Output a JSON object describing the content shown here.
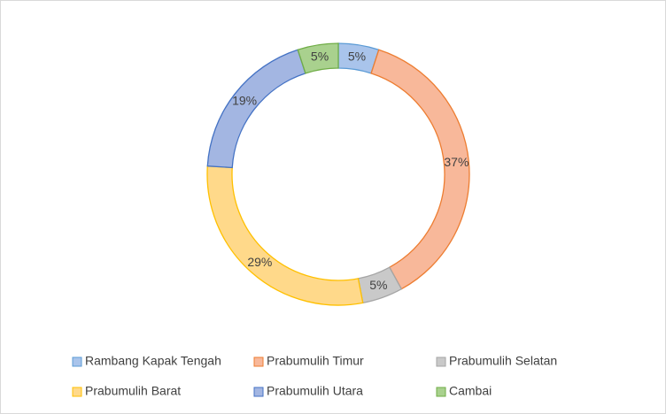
{
  "chart_data": {
    "type": "donut",
    "categories": [
      "Rambang Kapak Tengah",
      "Prabumulih Timur",
      "Prabumulih Selatan",
      "Prabumulih Barat",
      "Prabumulih Utara",
      "Cambai"
    ],
    "values": [
      5,
      37,
      5,
      29,
      19,
      5
    ],
    "value_labels": [
      "5%",
      "37%",
      "5%",
      "29%",
      "19%",
      "5%"
    ],
    "colors": [
      "#5b9bd5",
      "#ed7d31",
      "#a5a5a5",
      "#ffc000",
      "#4472c4",
      "#70ad47"
    ],
    "fill_colors": [
      "#a9c4eb",
      "#f8b89a",
      "#c9c9c9",
      "#ffd98a",
      "#a3b6e2",
      "#a9d18e"
    ],
    "legend": "bottom"
  }
}
